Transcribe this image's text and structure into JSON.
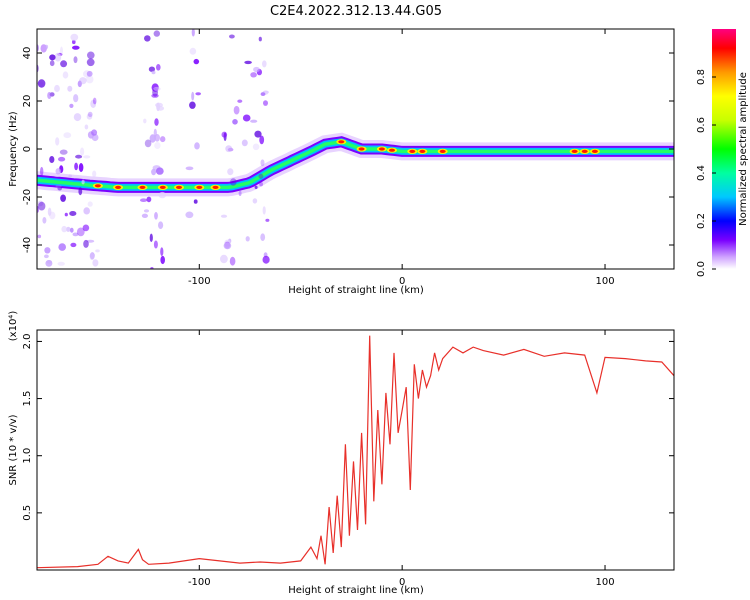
{
  "title": "C2E4.2022.312.13.44.G05",
  "chart_data": [
    {
      "type": "heatmap",
      "xlabel": "Height of straight line (km)",
      "ylabel": "Frequency (Hz)",
      "xlim": [
        -180,
        134
      ],
      "ylim": [
        -50,
        50
      ],
      "x_ticks": [
        -100,
        0,
        100
      ],
      "y_ticks": [
        -40,
        -20,
        0,
        20,
        40
      ],
      "colorbar": {
        "label": "Normalized spectral amplitude",
        "range": [
          0.0,
          1.0
        ],
        "ticks": [
          "0.0",
          "0.2",
          "0.4",
          "0.6",
          "0.8"
        ]
      },
      "ridge": {
        "x": [
          -180,
          -155,
          -140,
          -120,
          -100,
          -85,
          -75,
          -65,
          -55,
          -45,
          -38,
          -30,
          -20,
          -10,
          0,
          10,
          20,
          40,
          60,
          80,
          100,
          120,
          134
        ],
        "frequency": [
          -13,
          -15,
          -16,
          -16,
          -16,
          -16,
          -14,
          -9,
          -5,
          -1,
          2,
          3,
          0,
          0,
          -1,
          -1,
          -1,
          -1,
          -1,
          -1,
          -1,
          -1,
          -1
        ]
      }
    },
    {
      "type": "line",
      "xlabel": "Height of straight line (km)",
      "ylabel": "SNR (10 * v/v)",
      "y_multiplier": "(x10⁴)",
      "xlim": [
        -180,
        134
      ],
      "ylim": [
        0,
        2.1
      ],
      "x_ticks": [
        -100,
        0,
        100
      ],
      "y_ticks": [
        0.5,
        1.0,
        1.5,
        2.0
      ],
      "series": [
        {
          "color": "#e8302a",
          "x": [
            -180,
            -160,
            -150,
            -145,
            -140,
            -135,
            -130,
            -128,
            -125,
            -115,
            -100,
            -90,
            -80,
            -70,
            -60,
            -50,
            -45,
            -42,
            -40,
            -38,
            -36,
            -34,
            -32,
            -30,
            -28,
            -26,
            -24,
            -22,
            -20,
            -18,
            -16,
            -14,
            -12,
            -10,
            -8,
            -6,
            -4,
            -2,
            0,
            2,
            4,
            6,
            8,
            10,
            12,
            14,
            16,
            18,
            20,
            25,
            30,
            35,
            40,
            50,
            60,
            70,
            80,
            90,
            96,
            100,
            110,
            120,
            128,
            134
          ],
          "values": [
            0.02,
            0.03,
            0.05,
            0.12,
            0.08,
            0.06,
            0.18,
            0.09,
            0.05,
            0.06,
            0.1,
            0.08,
            0.06,
            0.07,
            0.06,
            0.08,
            0.2,
            0.1,
            0.3,
            0.05,
            0.55,
            0.15,
            0.65,
            0.2,
            1.1,
            0.3,
            0.95,
            0.35,
            1.2,
            0.4,
            2.05,
            0.6,
            1.4,
            0.75,
            1.55,
            1.1,
            1.9,
            1.2,
            1.4,
            1.6,
            0.7,
            1.8,
            1.5,
            1.75,
            1.6,
            1.7,
            1.9,
            1.75,
            1.85,
            1.95,
            1.9,
            1.95,
            1.92,
            1.88,
            1.93,
            1.87,
            1.9,
            1.88,
            1.55,
            1.86,
            1.85,
            1.83,
            1.82,
            1.7
          ]
        }
      ]
    }
  ]
}
